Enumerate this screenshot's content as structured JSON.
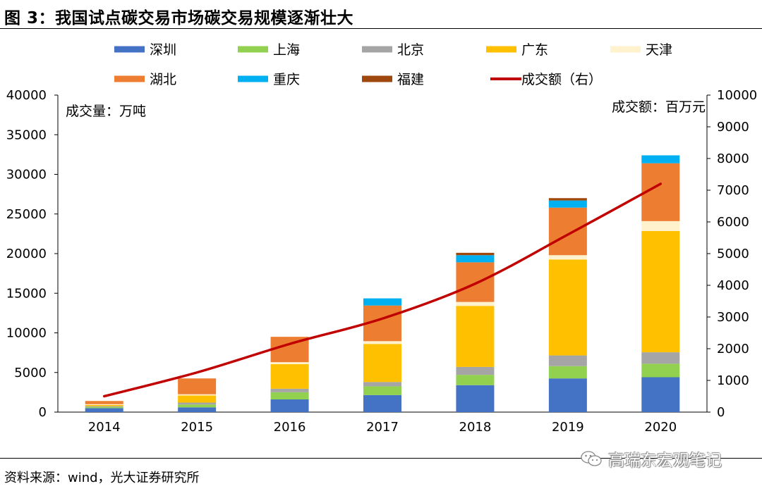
{
  "figure_title": "图 3：我国试点碳交易市场碳交易规模逐渐壮大",
  "source_note": "资料来源：wind，光大证券研究所",
  "watermark": "高瑞东宏观笔记",
  "chart_data": {
    "type": "bar",
    "stacked": true,
    "categories": [
      "2014",
      "2015",
      "2016",
      "2017",
      "2018",
      "2019",
      "2020"
    ],
    "left_axis": {
      "unit_label": "成交量：万吨",
      "ylim": [
        0,
        40000
      ],
      "ticks": [
        0,
        5000,
        10000,
        15000,
        20000,
        25000,
        30000,
        35000,
        40000
      ]
    },
    "right_axis": {
      "unit_label": "成交额：百万元",
      "ylim": [
        0,
        10000
      ],
      "ticks": [
        0,
        1000,
        2000,
        3000,
        4000,
        5000,
        6000,
        7000,
        8000,
        9000,
        10000
      ]
    },
    "grid": false,
    "legend_position": "top",
    "series": [
      {
        "name": "深圳",
        "type": "bar",
        "color": "#4472C4",
        "values": [
          500,
          600,
          1600,
          2150,
          3400,
          4250,
          4400
        ]
      },
      {
        "name": "上海",
        "type": "bar",
        "color": "#92D050",
        "values": [
          150,
          350,
          900,
          1100,
          1300,
          1550,
          1700
        ]
      },
      {
        "name": "北京",
        "type": "bar",
        "color": "#A5A5A5",
        "values": [
          100,
          250,
          450,
          550,
          1000,
          1350,
          1450
        ]
      },
      {
        "name": "广东",
        "type": "bar",
        "color": "#FFC000",
        "values": [
          150,
          900,
          3100,
          4800,
          7700,
          12100,
          15300
        ]
      },
      {
        "name": "天津",
        "type": "bar",
        "color": "#FFF2CC",
        "values": [
          100,
          150,
          250,
          350,
          500,
          550,
          1250
        ]
      },
      {
        "name": "湖北",
        "type": "bar",
        "color": "#ED7D31",
        "values": [
          400,
          2000,
          3200,
          4500,
          5000,
          6000,
          7300
        ]
      },
      {
        "name": "重庆",
        "type": "bar",
        "color": "#00B0F0",
        "values": [
          0,
          0,
          0,
          900,
          900,
          900,
          1000
        ]
      },
      {
        "name": "福建",
        "type": "bar",
        "color": "#9E480E",
        "values": [
          0,
          0,
          0,
          0,
          300,
          300,
          0
        ]
      },
      {
        "name": "成交额（右）",
        "type": "line",
        "axis": "right",
        "color": "#C00000",
        "values": [
          500,
          1250,
          2150,
          2950,
          4050,
          5600,
          7200
        ]
      }
    ]
  }
}
